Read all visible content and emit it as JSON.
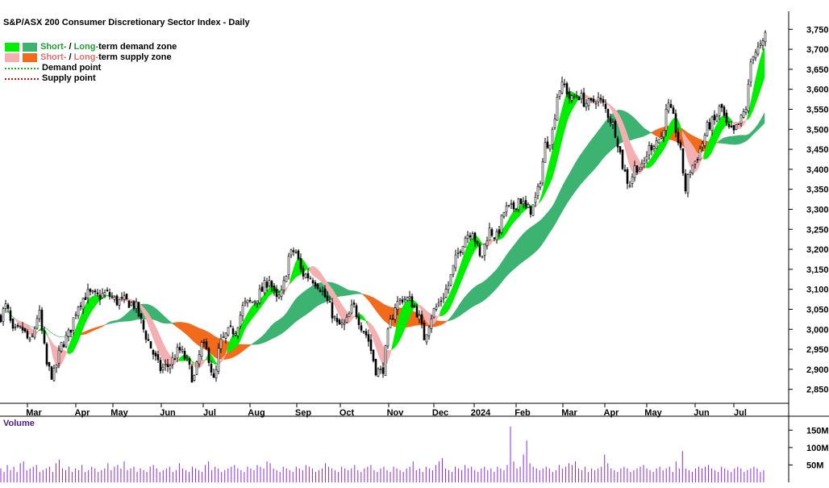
{
  "chart_data": {
    "type": "candlestick",
    "title": "S&P/ASX 200 Consumer Discretionary Sector Index - Daily",
    "x_labels": [
      "Mar",
      "Apr",
      "May",
      "Jun",
      "Jul",
      "Aug",
      "Sep",
      "Oct",
      "Nov",
      "Dec",
      "2024",
      "Feb",
      "Mar",
      "Apr",
      "May",
      "Jun",
      "Jul"
    ],
    "y_ticks": [
      "3,750",
      "3,700",
      "3,650",
      "3,600",
      "3,550",
      "3,500",
      "3,450",
      "3,400",
      "3,350",
      "3,300",
      "3,250",
      "3,200",
      "3,150",
      "3,100",
      "3,050",
      "3,000",
      "2,950",
      "2,900",
      "2,850"
    ],
    "y_range": [
      2815,
      3795
    ],
    "volume_label": "Volume",
    "volume_ticks": [
      "150M",
      "100M",
      "50M"
    ],
    "legend": {
      "demand_zone": {
        "short": "Short-",
        "sep": " / ",
        "long": "Long-",
        "rest": "term demand zone"
      },
      "supply_zone": {
        "short": "Short-",
        "sep": " / ",
        "long": "Long-",
        "rest": "term supply zone"
      },
      "demand_point": "Demand point",
      "supply_point": "Supply point"
    },
    "price_path": [
      [
        0,
        3030
      ],
      [
        8,
        3060
      ],
      [
        16,
        2990
      ],
      [
        28,
        3000
      ],
      [
        38,
        2960
      ],
      [
        48,
        3050
      ],
      [
        58,
        2910
      ],
      [
        66,
        2880
      ],
      [
        76,
        2960
      ],
      [
        86,
        2990
      ],
      [
        96,
        3060
      ],
      [
        108,
        3090
      ],
      [
        120,
        3080
      ],
      [
        132,
        3090
      ],
      [
        144,
        3070
      ],
      [
        156,
        3070
      ],
      [
        168,
        3060
      ],
      [
        178,
        3000
      ],
      [
        188,
        2950
      ],
      [
        198,
        2900
      ],
      [
        210,
        2910
      ],
      [
        222,
        2950
      ],
      [
        232,
        2920
      ],
      [
        240,
        2870
      ],
      [
        250,
        2960
      ],
      [
        258,
        2940
      ],
      [
        266,
        2860
      ],
      [
        272,
        2960
      ],
      [
        282,
        2990
      ],
      [
        292,
        3000
      ],
      [
        302,
        3060
      ],
      [
        314,
        3070
      ],
      [
        326,
        3100
      ],
      [
        334,
        3130
      ],
      [
        342,
        3070
      ],
      [
        350,
        3090
      ],
      [
        358,
        3180
      ],
      [
        366,
        3200
      ],
      [
        374,
        3140
      ],
      [
        386,
        3130
      ],
      [
        396,
        3110
      ],
      [
        408,
        3060
      ],
      [
        418,
        3010
      ],
      [
        428,
        3010
      ],
      [
        438,
        3060
      ],
      [
        448,
        3010
      ],
      [
        456,
        2980
      ],
      [
        466,
        2900
      ],
      [
        474,
        2890
      ],
      [
        482,
        3000
      ],
      [
        490,
        3060
      ],
      [
        500,
        3080
      ],
      [
        510,
        3070
      ],
      [
        518,
        3040
      ],
      [
        526,
        2980
      ],
      [
        536,
        3040
      ],
      [
        546,
        3070
      ],
      [
        556,
        3110
      ],
      [
        566,
        3180
      ],
      [
        576,
        3230
      ],
      [
        586,
        3250
      ],
      [
        596,
        3170
      ],
      [
        606,
        3250
      ],
      [
        616,
        3230
      ],
      [
        626,
        3300
      ],
      [
        636,
        3300
      ],
      [
        644,
        3330
      ],
      [
        652,
        3300
      ],
      [
        660,
        3300
      ],
      [
        668,
        3350
      ],
      [
        676,
        3460
      ],
      [
        684,
        3480
      ],
      [
        692,
        3600
      ],
      [
        700,
        3610
      ],
      [
        708,
        3570
      ],
      [
        716,
        3590
      ],
      [
        724,
        3570
      ],
      [
        732,
        3560
      ],
      [
        740,
        3580
      ],
      [
        748,
        3560
      ],
      [
        756,
        3530
      ],
      [
        764,
        3490
      ],
      [
        772,
        3410
      ],
      [
        780,
        3360
      ],
      [
        788,
        3410
      ],
      [
        796,
        3400
      ],
      [
        804,
        3450
      ],
      [
        812,
        3470
      ],
      [
        820,
        3480
      ],
      [
        828,
        3560
      ],
      [
        836,
        3520
      ],
      [
        844,
        3440
      ],
      [
        850,
        3350
      ],
      [
        856,
        3400
      ],
      [
        862,
        3420
      ],
      [
        870,
        3460
      ],
      [
        878,
        3510
      ],
      [
        886,
        3520
      ],
      [
        894,
        3560
      ],
      [
        902,
        3500
      ],
      [
        910,
        3490
      ],
      [
        918,
        3520
      ],
      [
        926,
        3560
      ],
      [
        932,
        3690
      ],
      [
        940,
        3700
      ],
      [
        946,
        3710
      ],
      [
        950,
        3745
      ]
    ],
    "volume_values": [
      40,
      30,
      50,
      35,
      45,
      30,
      55,
      60,
      35,
      40,
      45,
      50,
      30,
      35,
      40,
      45,
      30,
      55,
      65,
      40,
      35,
      45,
      30,
      40,
      35,
      50,
      30,
      35,
      45,
      40,
      30,
      35,
      40,
      55,
      35,
      45,
      50,
      40,
      60,
      35,
      40,
      45,
      30,
      40,
      35,
      30,
      45,
      50,
      40,
      30,
      35,
      40,
      45,
      30,
      35,
      55,
      40,
      35,
      30,
      45,
      40,
      35,
      30,
      50,
      60,
      35,
      45,
      40,
      30,
      35,
      40,
      45,
      50,
      40,
      35,
      30,
      45,
      40,
      35,
      50,
      45,
      40,
      60,
      55,
      40,
      35,
      30,
      45,
      40,
      35,
      30,
      45,
      40,
      35,
      50,
      45,
      40,
      30,
      35,
      40,
      55,
      45,
      40,
      35,
      30,
      45,
      40,
      35,
      40,
      50,
      35,
      30,
      40,
      45,
      50,
      35,
      30,
      40,
      45,
      35,
      30,
      45,
      40,
      35,
      30,
      40,
      45,
      60,
      35,
      40,
      30,
      45,
      40,
      35,
      50,
      60,
      70,
      40,
      35,
      30,
      45,
      40,
      35,
      50,
      40,
      45,
      35,
      30,
      40,
      45,
      35,
      40,
      30,
      45,
      40,
      35,
      50,
      160,
      60,
      40,
      45,
      80,
      120,
      55,
      45,
      40,
      35,
      40,
      45,
      40,
      30,
      35,
      50,
      40,
      45,
      55,
      50,
      60,
      40,
      35,
      45,
      30,
      40,
      35,
      40,
      45,
      80,
      55,
      40,
      35,
      30,
      40,
      45,
      40,
      30,
      35,
      40,
      45,
      50,
      40,
      35,
      30,
      40,
      45,
      35,
      40,
      45,
      30,
      60,
      40,
      90,
      40,
      35,
      30,
      40,
      45,
      40,
      45,
      50,
      40,
      35,
      30,
      45,
      40,
      35,
      30,
      40,
      45,
      40,
      30,
      35,
      40,
      45,
      40,
      30,
      35
    ],
    "colors": {
      "short_demand": "#00ee00",
      "long_demand": "#3cb371",
      "short_supply": "#f4b0b0",
      "long_supply": "#f26a1b",
      "demand_point": "#19b319",
      "supply_point": "#d01010",
      "volume_axis_label": "#4a1c8c",
      "legend_green_text": "#1f9f2f",
      "legend_red_text": "#e07070"
    }
  }
}
